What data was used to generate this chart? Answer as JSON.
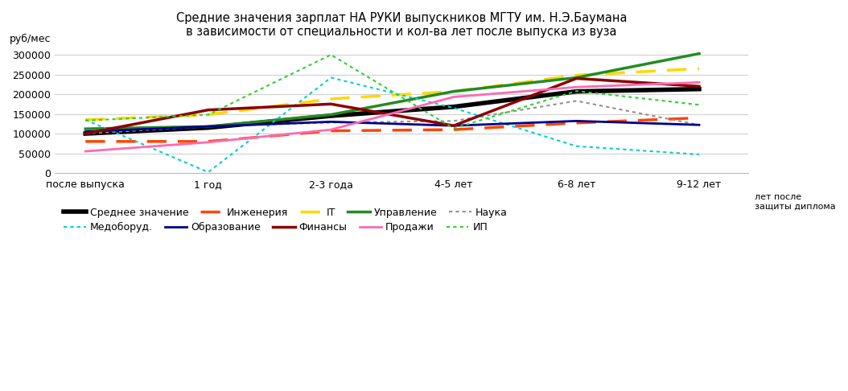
{
  "title_line1": "Средние значения зарплат НА РУКИ выпускников МГТУ им. Н.Э.Баумана",
  "title_line2": "в зависимости от специальности и кол-ва лет после выпуска из вуза",
  "ylabel": "руб/мес",
  "xlabel_right": "лет после\nзащиты диплома",
  "xtick_labels": [
    "после выпуска",
    "1 год",
    "2-3 года",
    "4-5 лет",
    "6-8 лет",
    "9-12 лет"
  ],
  "ylim": [
    0,
    320000
  ],
  "yticks": [
    0,
    50000,
    100000,
    150000,
    200000,
    250000,
    300000
  ],
  "series": {
    "Среднее значение": {
      "values": [
        100000,
        115000,
        145000,
        168000,
        207000,
        213000
      ],
      "color": "#000000",
      "linewidth": 4.0,
      "linestyle": "solid"
    },
    "Инженерия": {
      "values": [
        80000,
        80000,
        107000,
        110000,
        127000,
        140000
      ],
      "color": "#FF4500",
      "linewidth": 2.5,
      "linestyle": "dashed"
    },
    "IT": {
      "values": [
        135000,
        148000,
        188000,
        207000,
        248000,
        265000
      ],
      "color": "#FFD700",
      "linewidth": 2.5,
      "linestyle": "dashed"
    },
    "Управление": {
      "values": [
        112000,
        118000,
        148000,
        207000,
        242000,
        303000
      ],
      "color": "#228B22",
      "linewidth": 2.5,
      "linestyle": "solid"
    },
    "Наука": {
      "values": [
        100000,
        118000,
        128000,
        132000,
        183000,
        122000
      ],
      "color": "#909090",
      "linewidth": 1.5,
      "linestyle": "dotted"
    },
    "Медоборуд.": {
      "values": [
        135000,
        2000,
        242000,
        165000,
        68000,
        47000
      ],
      "color": "#00CED1",
      "linewidth": 1.5,
      "linestyle": "dotted"
    },
    "Образование": {
      "values": [
        105000,
        118000,
        130000,
        120000,
        132000,
        122000
      ],
      "color": "#00008B",
      "linewidth": 2.0,
      "linestyle": "solid"
    },
    "Финансы": {
      "values": [
        100000,
        160000,
        175000,
        120000,
        240000,
        220000
      ],
      "color": "#8B0000",
      "linewidth": 2.5,
      "linestyle": "solid"
    },
    "Продажи": {
      "values": [
        55000,
        78000,
        110000,
        193000,
        218000,
        230000
      ],
      "color": "#FF69B4",
      "linewidth": 2.0,
      "linestyle": "solid"
    },
    "ИП": {
      "values": [
        133000,
        148000,
        300000,
        113000,
        208000,
        173000
      ],
      "color": "#32CD32",
      "linewidth": 1.5,
      "linestyle": "dotted"
    }
  },
  "legend_row1": [
    "Среднее значение",
    "Инженерия",
    "IT",
    "Управление",
    "Наука"
  ],
  "legend_row2": [
    "Медоборуд.",
    "Образование",
    "Финансы",
    "Продажи",
    "ИП"
  ],
  "background_color": "#FFFFFF",
  "grid_color": "#D0D0D0"
}
